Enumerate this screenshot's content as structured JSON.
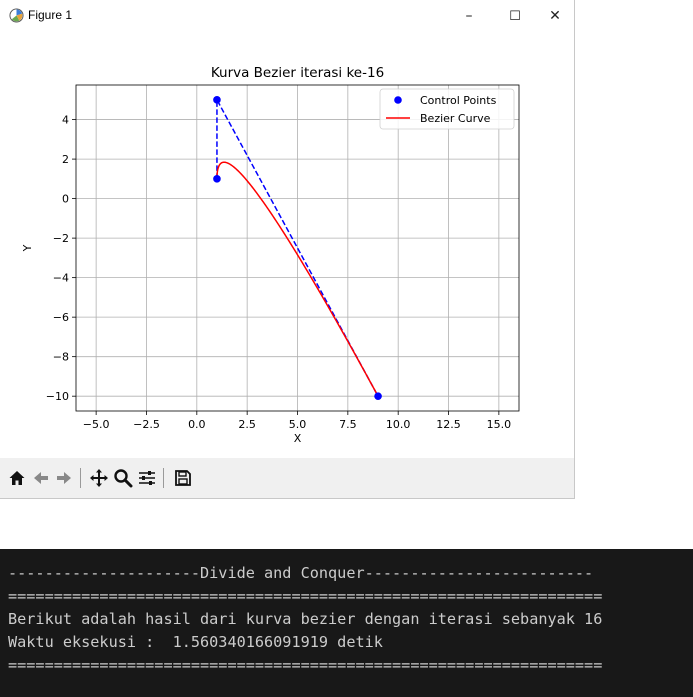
{
  "window": {
    "title": "Figure 1",
    "controls": {
      "minimize": "–",
      "maximize": "☐",
      "close": "✕"
    }
  },
  "toolbar": {
    "items": [
      "home-icon",
      "back-icon",
      "forward-icon",
      "pan-icon",
      "zoom-icon",
      "configure-icon",
      "save-icon"
    ]
  },
  "chart_data": {
    "type": "line",
    "title": "Kurva Bezier iterasi ke-16",
    "xlabel": "X",
    "ylabel": "Y",
    "xlim": [
      -6.0,
      16.0
    ],
    "ylim": [
      -10.75,
      5.75
    ],
    "xticks": [
      -5.0,
      -2.5,
      0.0,
      2.5,
      5.0,
      7.5,
      10.0,
      12.5,
      15.0
    ],
    "xtick_labels": [
      "−5.0",
      "−2.5",
      "0.0",
      "2.5",
      "5.0",
      "7.5",
      "10.0",
      "12.5",
      "15.0"
    ],
    "yticks": [
      -10,
      -8,
      -6,
      -4,
      -2,
      0,
      2,
      4
    ],
    "ytick_labels": [
      "−10",
      "−8",
      "−6",
      "−4",
      "−2",
      "0",
      "2",
      "4"
    ],
    "grid": true,
    "legend_position": "top-right",
    "series": [
      {
        "name": "Control Points",
        "kind": "scatter+dashed",
        "color": "#0000ff",
        "x": [
          1,
          1,
          9
        ],
        "y": [
          1,
          5,
          -10
        ]
      },
      {
        "name": "Bezier Curve",
        "kind": "line",
        "color": "#ff0000",
        "control": {
          "x": [
            1,
            1,
            9
          ],
          "y": [
            1,
            5,
            -10
          ]
        }
      }
    ]
  },
  "terminal": {
    "lines": [
      "---------------------Divide and Conquer-------------------------",
      "=================================================================",
      "Berikut adalah hasil dari kurva bezier dengan iterasi sebanyak 16",
      "Waktu eksekusi :  1.560340166091919 detik",
      "================================================================="
    ]
  }
}
